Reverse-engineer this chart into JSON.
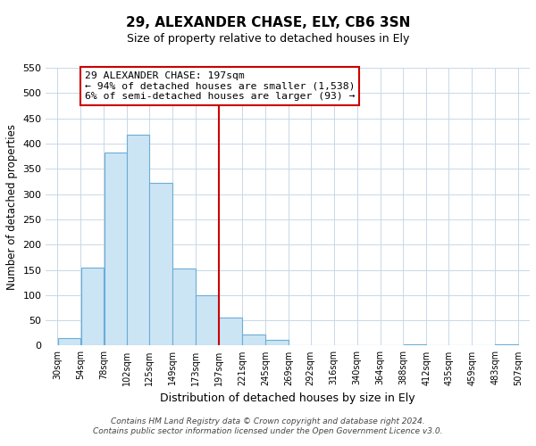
{
  "title": "29, ALEXANDER CHASE, ELY, CB6 3SN",
  "subtitle": "Size of property relative to detached houses in Ely",
  "xlabel": "Distribution of detached houses by size in Ely",
  "ylabel": "Number of detached properties",
  "bar_left_edges": [
    30,
    54,
    78,
    102,
    125,
    149,
    173,
    197,
    221,
    245,
    269,
    292,
    316,
    340,
    364,
    388,
    412,
    435,
    459,
    483
  ],
  "bar_heights": [
    15,
    155,
    382,
    418,
    322,
    153,
    100,
    55,
    22,
    12,
    0,
    0,
    0,
    0,
    0,
    3,
    0,
    0,
    0,
    2
  ],
  "bar_widths": [
    24,
    24,
    24,
    23,
    24,
    24,
    24,
    24,
    24,
    24,
    23,
    24,
    24,
    24,
    24,
    24,
    23,
    24,
    24,
    24
  ],
  "bar_color": "#cce5f5",
  "bar_edgecolor": "#6baed6",
  "vline_x": 197,
  "vline_color": "#cc0000",
  "tick_labels": [
    "30sqm",
    "54sqm",
    "78sqm",
    "102sqm",
    "125sqm",
    "149sqm",
    "173sqm",
    "197sqm",
    "221sqm",
    "245sqm",
    "269sqm",
    "292sqm",
    "316sqm",
    "340sqm",
    "364sqm",
    "388sqm",
    "412sqm",
    "435sqm",
    "459sqm",
    "483sqm",
    "507sqm"
  ],
  "tick_positions": [
    30,
    54,
    78,
    102,
    125,
    149,
    173,
    197,
    221,
    245,
    269,
    292,
    316,
    340,
    364,
    388,
    412,
    435,
    459,
    483,
    507
  ],
  "ylim": [
    0,
    550
  ],
  "yticks": [
    0,
    50,
    100,
    150,
    200,
    250,
    300,
    350,
    400,
    450,
    500,
    550
  ],
  "xlim": [
    18,
    519
  ],
  "annotation_line1": "29 ALEXANDER CHASE: 197sqm",
  "annotation_line2": "← 94% of detached houses are smaller (1,538)",
  "annotation_line3": "6% of semi-detached houses are larger (93) →",
  "footer_line1": "Contains HM Land Registry data © Crown copyright and database right 2024.",
  "footer_line2": "Contains public sector information licensed under the Open Government Licence v3.0.",
  "bg_color": "#ffffff",
  "grid_color": "#c8d8e8"
}
